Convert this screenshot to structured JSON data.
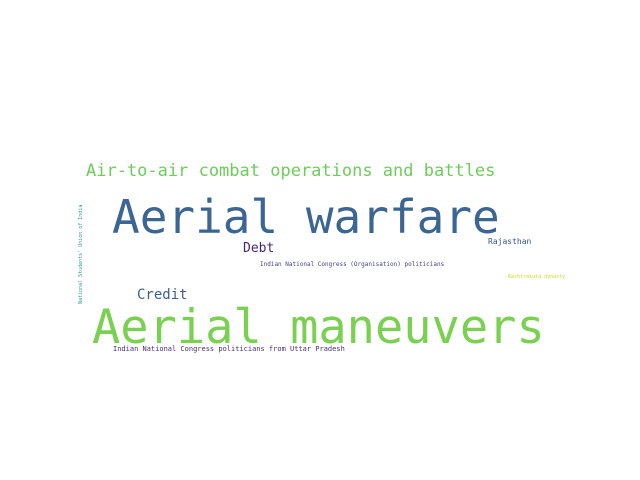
{
  "word_cloud": {
    "words": [
      {
        "text": "Aerial maneuvers",
        "color": "#7ad151"
      },
      {
        "text": "Aerial warfare",
        "color": "#3b6593"
      },
      {
        "text": "Air-to-air combat operations and battles",
        "color": "#6ccd5a"
      },
      {
        "text": "Credit",
        "color": "#3a5f8f"
      },
      {
        "text": "Debt",
        "color": "#482475"
      },
      {
        "text": "Rajasthan",
        "color": "#39568c"
      },
      {
        "text": "Indian National Congress (Organisation) politicians",
        "color": "#414487"
      },
      {
        "text": "Rashtrakuta dynasty",
        "color": "#c8e020"
      },
      {
        "text": "Indian National Congress politicians from Uttar Pradesh",
        "color": "#472d7b"
      },
      {
        "text": "National Students' Union of India",
        "color": "#2a9a8a"
      }
    ]
  }
}
